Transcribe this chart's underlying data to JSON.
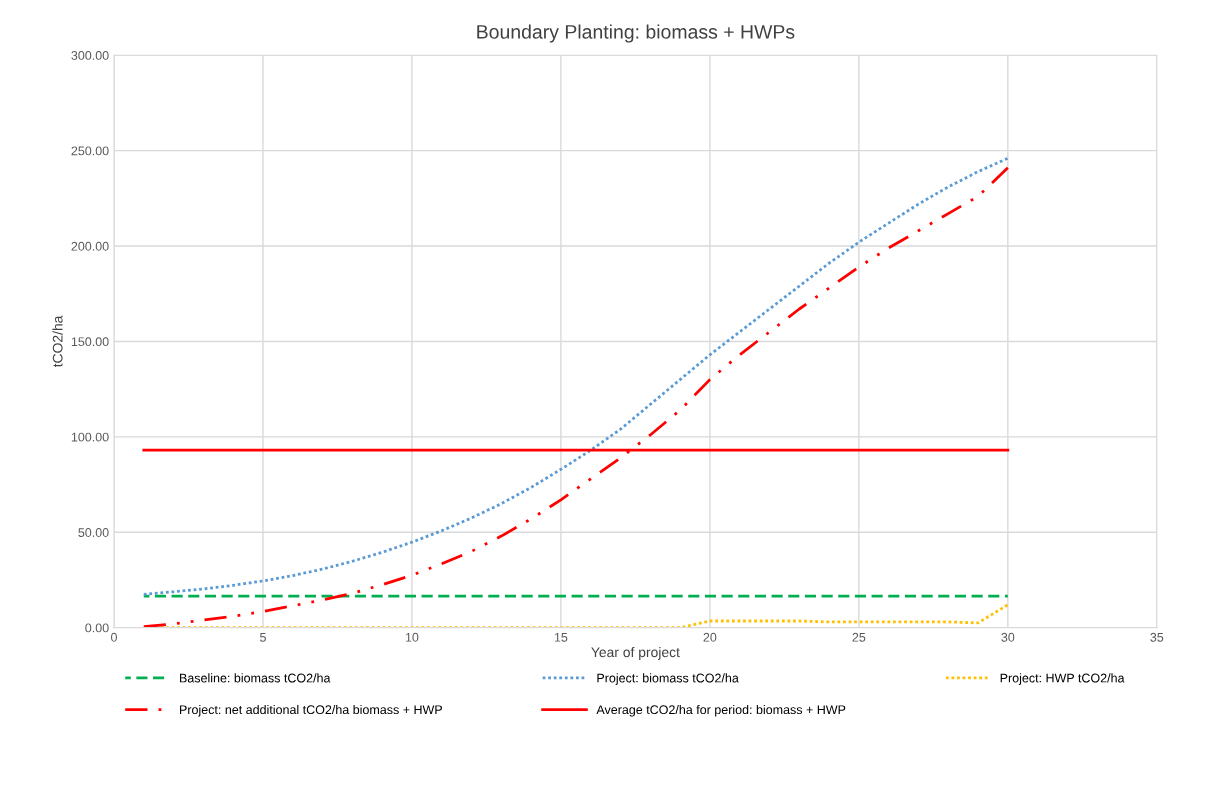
{
  "chart_data": {
    "type": "line",
    "title": "Boundary Planting: biomass + HWPs",
    "xlabel": "Year of project",
    "ylabel": "tCO2/ha",
    "x": [
      1,
      2,
      3,
      4,
      5,
      6,
      7,
      8,
      9,
      10,
      11,
      12,
      13,
      14,
      15,
      16,
      17,
      18,
      19,
      20,
      21,
      22,
      23,
      24,
      25,
      26,
      27,
      28,
      29,
      30
    ],
    "series": [
      {
        "name": "Baseline: biomass tCO2/ha",
        "color": "#00b050",
        "line_style": "dashed",
        "values": [
          16.5,
          16.5,
          16.5,
          16.5,
          16.5,
          16.5,
          16.5,
          16.5,
          16.5,
          16.5,
          16.5,
          16.5,
          16.5,
          16.5,
          16.5,
          16.5,
          16.5,
          16.5,
          16.5,
          16.5,
          16.5,
          16.5,
          16.5,
          16.5,
          16.5,
          16.5,
          16.5,
          16.5,
          16.5,
          16.5
        ]
      },
      {
        "name": "Project: biomass tCO2/ha",
        "color": "#5b9bd5",
        "line_style": "dotted",
        "values": [
          17.5,
          18.8,
          20.3,
          22.2,
          24.5,
          27.3,
          30.7,
          34.8,
          39.5,
          44.8,
          50.8,
          57.5,
          65,
          73.5,
          83,
          93,
          104,
          117,
          130,
          143,
          155,
          167,
          179,
          191,
          202,
          212,
          222,
          231,
          239,
          246
        ]
      },
      {
        "name": "Project: HWP tCO2/ha",
        "color": "#ffc000",
        "line_style": "dotted",
        "values": [
          0,
          0,
          0,
          0,
          0,
          0,
          0,
          0,
          0,
          0,
          0,
          0,
          0,
          0,
          0,
          0,
          0,
          0,
          0,
          3.5,
          3.5,
          3.5,
          3.5,
          3,
          3,
          3,
          3,
          3,
          2.5,
          12
        ]
      },
      {
        "name": "Project: net additional tCO2/ha biomass + HWP",
        "color": "#ff0000",
        "line_style": "dashdot",
        "values": [
          0.5,
          2,
          4,
          6,
          8.5,
          11.5,
          14.5,
          18,
          22.5,
          27.5,
          33.5,
          40,
          48,
          57,
          67,
          78,
          89,
          101,
          114,
          130,
          143,
          155,
          167,
          178,
          189,
          199,
          208,
          217,
          226,
          241
        ]
      },
      {
        "name": "Average tCO2/ha for period: biomass + HWP",
        "color": "#ff0000",
        "line_style": "solid",
        "values": [
          93,
          93,
          93,
          93,
          93,
          93,
          93,
          93,
          93,
          93,
          93,
          93,
          93,
          93,
          93,
          93,
          93,
          93,
          93,
          93,
          93,
          93,
          93,
          93,
          93,
          93,
          93,
          93,
          93,
          93
        ]
      }
    ],
    "xlim": [
      0,
      35
    ],
    "xticks": [
      0,
      5,
      10,
      15,
      20,
      25,
      30,
      35
    ],
    "ylim": [
      0,
      300
    ],
    "yticks": [
      {
        "value": 0,
        "label": "0.00"
      },
      {
        "value": 50,
        "label": "50.00"
      },
      {
        "value": 100,
        "label": "100.00"
      },
      {
        "value": 150,
        "label": "150.00"
      },
      {
        "value": 200,
        "label": "200.00"
      },
      {
        "value": 250,
        "label": "250.00"
      },
      {
        "value": 300,
        "label": "300.00"
      }
    ],
    "grid": true,
    "legend": "bottom"
  }
}
